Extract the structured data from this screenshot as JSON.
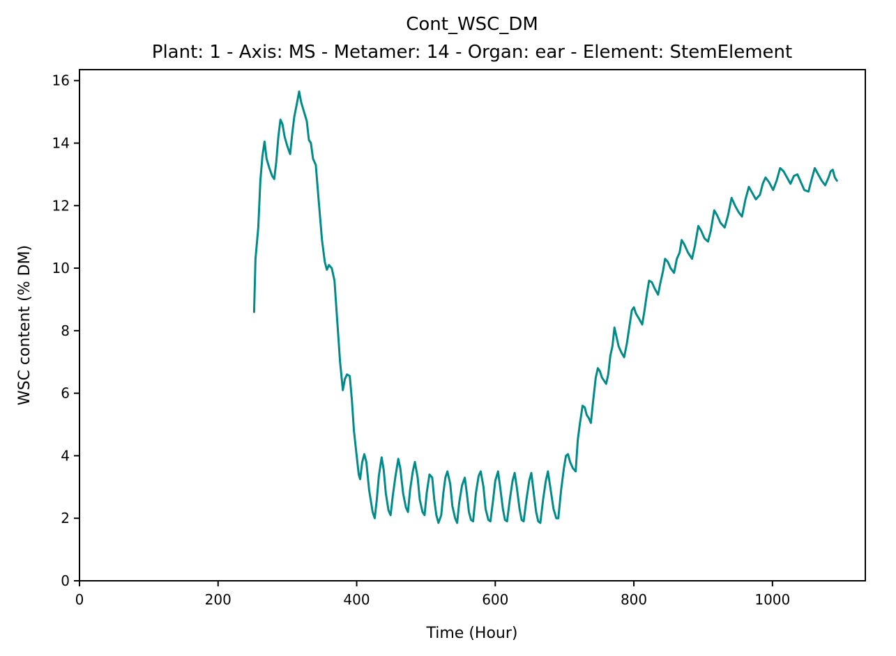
{
  "chart_data": {
    "type": "line",
    "title": "Cont_WSC_DM",
    "subtitle": "Plant: 1 - Axis: MS - Metamer: 14 - Organ: ear - Element: StemElement",
    "xlabel": "Time (Hour)",
    "ylabel": "WSC content (% DM)",
    "xlim": [
      0,
      1134
    ],
    "ylim": [
      0,
      16.35
    ],
    "xticks": [
      0,
      200,
      400,
      600,
      800,
      1000
    ],
    "yticks": [
      0,
      2,
      4,
      6,
      8,
      10,
      12,
      14,
      16
    ],
    "grid": false,
    "series": [
      {
        "color": "#008b8b",
        "points": [
          [
            252,
            8.6
          ],
          [
            254,
            10.3
          ],
          [
            258,
            11.3
          ],
          [
            261,
            12.8
          ],
          [
            264,
            13.6
          ],
          [
            267,
            14.05
          ],
          [
            270,
            13.5
          ],
          [
            274,
            13.2
          ],
          [
            278,
            12.95
          ],
          [
            281,
            12.85
          ],
          [
            284,
            13.4
          ],
          [
            287,
            14.2
          ],
          [
            290,
            14.75
          ],
          [
            293,
            14.6
          ],
          [
            296,
            14.2
          ],
          [
            300,
            13.9
          ],
          [
            304,
            13.65
          ],
          [
            307,
            14.3
          ],
          [
            310,
            14.85
          ],
          [
            314,
            15.3
          ],
          [
            317,
            15.65
          ],
          [
            320,
            15.3
          ],
          [
            324,
            15.0
          ],
          [
            328,
            14.7
          ],
          [
            331,
            14.1
          ],
          [
            334,
            14.0
          ],
          [
            337,
            13.5
          ],
          [
            341,
            13.3
          ],
          [
            345,
            12.2
          ],
          [
            350,
            10.9
          ],
          [
            354,
            10.2
          ],
          [
            357,
            9.95
          ],
          [
            360,
            10.1
          ],
          [
            364,
            10.0
          ],
          [
            368,
            9.6
          ],
          [
            372,
            8.3
          ],
          [
            376,
            7.0
          ],
          [
            380,
            6.1
          ],
          [
            383,
            6.45
          ],
          [
            386,
            6.6
          ],
          [
            390,
            6.55
          ],
          [
            393,
            5.8
          ],
          [
            396,
            4.8
          ],
          [
            400,
            4.0
          ],
          [
            403,
            3.4
          ],
          [
            405,
            3.25
          ],
          [
            408,
            3.8
          ],
          [
            411,
            4.05
          ],
          [
            414,
            3.8
          ],
          [
            418,
            2.9
          ],
          [
            423,
            2.2
          ],
          [
            426,
            2.0
          ],
          [
            429,
            2.6
          ],
          [
            432,
            3.35
          ],
          [
            436,
            3.95
          ],
          [
            439,
            3.55
          ],
          [
            442,
            2.8
          ],
          [
            446,
            2.25
          ],
          [
            449,
            2.1
          ],
          [
            452,
            2.7
          ],
          [
            456,
            3.35
          ],
          [
            460,
            3.9
          ],
          [
            463,
            3.6
          ],
          [
            467,
            2.8
          ],
          [
            471,
            2.35
          ],
          [
            474,
            2.2
          ],
          [
            477,
            2.9
          ],
          [
            481,
            3.5
          ],
          [
            484,
            3.8
          ],
          [
            488,
            3.3
          ],
          [
            491,
            2.6
          ],
          [
            495,
            2.2
          ],
          [
            498,
            2.1
          ],
          [
            501,
            2.8
          ],
          [
            505,
            3.4
          ],
          [
            509,
            3.3
          ],
          [
            512,
            2.6
          ],
          [
            515,
            2.1
          ],
          [
            518,
            1.85
          ],
          [
            522,
            2.1
          ],
          [
            525,
            2.8
          ],
          [
            528,
            3.3
          ],
          [
            531,
            3.5
          ],
          [
            535,
            3.1
          ],
          [
            538,
            2.4
          ],
          [
            542,
            2.0
          ],
          [
            545,
            1.85
          ],
          [
            548,
            2.5
          ],
          [
            552,
            3.05
          ],
          [
            556,
            3.3
          ],
          [
            559,
            2.8
          ],
          [
            562,
            2.2
          ],
          [
            565,
            1.95
          ],
          [
            568,
            1.9
          ],
          [
            572,
            2.8
          ],
          [
            576,
            3.35
          ],
          [
            579,
            3.5
          ],
          [
            583,
            3.0
          ],
          [
            586,
            2.3
          ],
          [
            590,
            1.95
          ],
          [
            593,
            1.9
          ],
          [
            597,
            2.6
          ],
          [
            600,
            3.2
          ],
          [
            604,
            3.5
          ],
          [
            607,
            3.0
          ],
          [
            611,
            2.3
          ],
          [
            614,
            1.95
          ],
          [
            617,
            1.9
          ],
          [
            621,
            2.6
          ],
          [
            625,
            3.2
          ],
          [
            628,
            3.45
          ],
          [
            631,
            3.0
          ],
          [
            635,
            2.3
          ],
          [
            638,
            1.95
          ],
          [
            641,
            1.9
          ],
          [
            645,
            2.6
          ],
          [
            649,
            3.2
          ],
          [
            652,
            3.45
          ],
          [
            655,
            2.9
          ],
          [
            659,
            2.2
          ],
          [
            662,
            1.9
          ],
          [
            665,
            1.85
          ],
          [
            669,
            2.6
          ],
          [
            673,
            3.2
          ],
          [
            676,
            3.5
          ],
          [
            680,
            2.9
          ],
          [
            684,
            2.3
          ],
          [
            688,
            2.0
          ],
          [
            691,
            2.0
          ],
          [
            695,
            2.9
          ],
          [
            699,
            3.6
          ],
          [
            702,
            4.0
          ],
          [
            705,
            4.05
          ],
          [
            708,
            3.8
          ],
          [
            712,
            3.6
          ],
          [
            716,
            3.5
          ],
          [
            719,
            4.5
          ],
          [
            722,
            5.0
          ],
          [
            726,
            5.6
          ],
          [
            729,
            5.55
          ],
          [
            732,
            5.3
          ],
          [
            735,
            5.2
          ],
          [
            738,
            5.05
          ],
          [
            741,
            5.7
          ],
          [
            745,
            6.5
          ],
          [
            748,
            6.8
          ],
          [
            751,
            6.7
          ],
          [
            754,
            6.5
          ],
          [
            757,
            6.4
          ],
          [
            760,
            6.3
          ],
          [
            763,
            6.6
          ],
          [
            766,
            7.2
          ],
          [
            769,
            7.5
          ],
          [
            772,
            8.1
          ],
          [
            775,
            7.8
          ],
          [
            778,
            7.5
          ],
          [
            782,
            7.3
          ],
          [
            786,
            7.15
          ],
          [
            790,
            7.6
          ],
          [
            794,
            8.2
          ],
          [
            797,
            8.65
          ],
          [
            800,
            8.75
          ],
          [
            803,
            8.55
          ],
          [
            807,
            8.4
          ],
          [
            812,
            8.2
          ],
          [
            815,
            8.6
          ],
          [
            819,
            9.2
          ],
          [
            822,
            9.6
          ],
          [
            826,
            9.55
          ],
          [
            830,
            9.35
          ],
          [
            835,
            9.15
          ],
          [
            838,
            9.5
          ],
          [
            842,
            9.9
          ],
          [
            845,
            10.3
          ],
          [
            849,
            10.2
          ],
          [
            853,
            10.0
          ],
          [
            858,
            9.85
          ],
          [
            862,
            10.3
          ],
          [
            866,
            10.5
          ],
          [
            869,
            10.9
          ],
          [
            873,
            10.75
          ],
          [
            878,
            10.5
          ],
          [
            884,
            10.3
          ],
          [
            888,
            10.7
          ],
          [
            893,
            11.35
          ],
          [
            897,
            11.2
          ],
          [
            902,
            10.95
          ],
          [
            907,
            10.85
          ],
          [
            911,
            11.2
          ],
          [
            916,
            11.85
          ],
          [
            920,
            11.7
          ],
          [
            925,
            11.45
          ],
          [
            931,
            11.3
          ],
          [
            936,
            11.7
          ],
          [
            941,
            12.25
          ],
          [
            946,
            12.0
          ],
          [
            951,
            11.8
          ],
          [
            956,
            11.65
          ],
          [
            961,
            12.2
          ],
          [
            966,
            12.6
          ],
          [
            971,
            12.4
          ],
          [
            976,
            12.2
          ],
          [
            982,
            12.35
          ],
          [
            986,
            12.7
          ],
          [
            990,
            12.9
          ],
          [
            995,
            12.75
          ],
          [
            1001,
            12.5
          ],
          [
            1006,
            12.8
          ],
          [
            1011,
            13.2
          ],
          [
            1016,
            13.1
          ],
          [
            1021,
            12.9
          ],
          [
            1026,
            12.7
          ],
          [
            1031,
            12.95
          ],
          [
            1036,
            13.0
          ],
          [
            1041,
            12.75
          ],
          [
            1046,
            12.5
          ],
          [
            1052,
            12.45
          ],
          [
            1056,
            12.8
          ],
          [
            1061,
            13.2
          ],
          [
            1066,
            13.0
          ],
          [
            1071,
            12.8
          ],
          [
            1076,
            12.65
          ],
          [
            1081,
            12.9
          ],
          [
            1084,
            13.1
          ],
          [
            1087,
            13.15
          ],
          [
            1090,
            12.9
          ],
          [
            1093,
            12.8
          ]
        ]
      }
    ]
  }
}
